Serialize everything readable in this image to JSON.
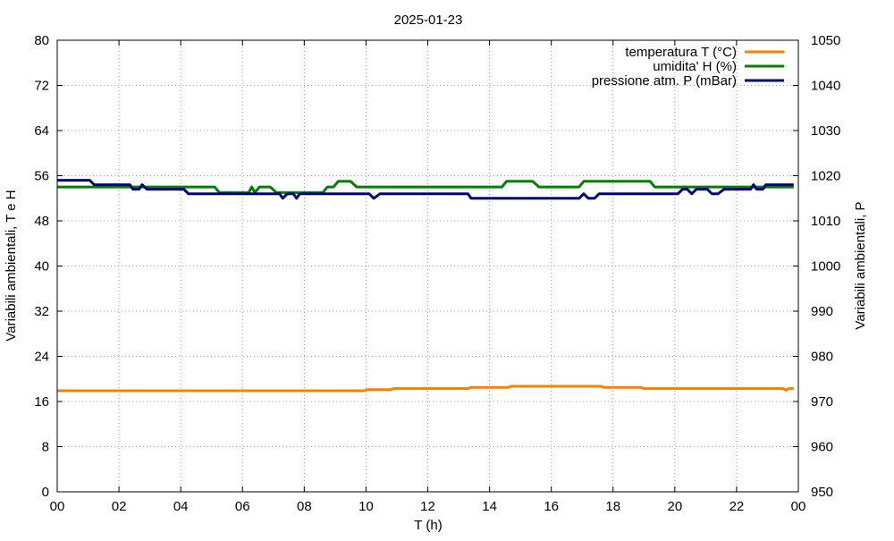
{
  "chart_data": {
    "type": "line",
    "title": "2025-01-23",
    "xlabel": "T (h)",
    "ylabel": "Variabili ambientali, T e H",
    "y2label": "Variabili ambientali, P",
    "xlim": [
      0,
      24
    ],
    "ylim": [
      0,
      80
    ],
    "y2lim": [
      950,
      1050
    ],
    "grid": true,
    "legend_position": "top-right",
    "x_tick_labels": [
      "00",
      "02",
      "04",
      "06",
      "08",
      "10",
      "12",
      "14",
      "16",
      "18",
      "20",
      "22",
      "00"
    ],
    "y_tick_labels": [
      "0",
      "8",
      "16",
      "24",
      "32",
      "40",
      "48",
      "56",
      "64",
      "72",
      "80"
    ],
    "y2_tick_labels": [
      "950",
      "960",
      "970",
      "980",
      "990",
      "1000",
      "1010",
      "1020",
      "1030",
      "1040",
      "1050"
    ],
    "series": [
      {
        "name": "temperatura T (°C)",
        "axis": "y",
        "color": "#ff7f00",
        "points": [
          [
            0,
            17.9
          ],
          [
            9.95,
            17.9
          ],
          [
            10.05,
            18.1
          ],
          [
            10.8,
            18.1
          ],
          [
            10.9,
            18.3
          ],
          [
            13.3,
            18.3
          ],
          [
            13.4,
            18.5
          ],
          [
            14.6,
            18.5
          ],
          [
            14.7,
            18.7
          ],
          [
            17.6,
            18.7
          ],
          [
            17.7,
            18.5
          ],
          [
            18.9,
            18.5
          ],
          [
            19.0,
            18.3
          ],
          [
            23.5,
            18.3
          ],
          [
            23.6,
            18.0
          ],
          [
            23.7,
            18.3
          ],
          [
            23.85,
            18.3
          ]
        ]
      },
      {
        "name": "umidita' H (%)",
        "axis": "y",
        "color": "#008000",
        "points": [
          [
            0,
            54
          ],
          [
            5.1,
            54
          ],
          [
            5.25,
            53
          ],
          [
            6.2,
            53
          ],
          [
            6.3,
            54
          ],
          [
            6.4,
            53
          ],
          [
            6.55,
            54
          ],
          [
            6.9,
            54
          ],
          [
            7.1,
            53
          ],
          [
            8.6,
            53
          ],
          [
            8.75,
            54
          ],
          [
            8.95,
            54
          ],
          [
            9.1,
            55
          ],
          [
            9.5,
            55
          ],
          [
            9.7,
            54
          ],
          [
            14.4,
            54
          ],
          [
            14.55,
            55
          ],
          [
            15.4,
            55
          ],
          [
            15.6,
            54
          ],
          [
            16.9,
            54
          ],
          [
            17.05,
            55
          ],
          [
            19.2,
            55
          ],
          [
            19.35,
            54
          ],
          [
            23.85,
            54
          ]
        ]
      },
      {
        "name": "pressione atm. P (mBar)",
        "axis": "y2",
        "color": "#000080",
        "points": [
          [
            0,
            1019
          ],
          [
            1.05,
            1019
          ],
          [
            1.2,
            1018
          ],
          [
            2.35,
            1018
          ],
          [
            2.45,
            1017
          ],
          [
            2.65,
            1017
          ],
          [
            2.75,
            1018
          ],
          [
            2.9,
            1017
          ],
          [
            4.1,
            1017
          ],
          [
            4.25,
            1016
          ],
          [
            7.2,
            1016
          ],
          [
            7.3,
            1015
          ],
          [
            7.45,
            1016
          ],
          [
            7.65,
            1016
          ],
          [
            7.75,
            1015
          ],
          [
            7.85,
            1016
          ],
          [
            10.1,
            1016
          ],
          [
            10.25,
            1015
          ],
          [
            10.45,
            1016
          ],
          [
            13.3,
            1016
          ],
          [
            13.4,
            1015
          ],
          [
            16.9,
            1015
          ],
          [
            17.05,
            1016
          ],
          [
            17.2,
            1015
          ],
          [
            17.4,
            1015
          ],
          [
            17.55,
            1016
          ],
          [
            20.1,
            1016
          ],
          [
            20.25,
            1017
          ],
          [
            20.4,
            1017
          ],
          [
            20.55,
            1016
          ],
          [
            20.7,
            1017
          ],
          [
            21.05,
            1017
          ],
          [
            21.2,
            1016
          ],
          [
            21.4,
            1016
          ],
          [
            21.6,
            1017
          ],
          [
            22.45,
            1017
          ],
          [
            22.55,
            1018
          ],
          [
            22.65,
            1017
          ],
          [
            22.85,
            1017
          ],
          [
            22.95,
            1018
          ],
          [
            23.85,
            1018
          ]
        ]
      }
    ]
  }
}
